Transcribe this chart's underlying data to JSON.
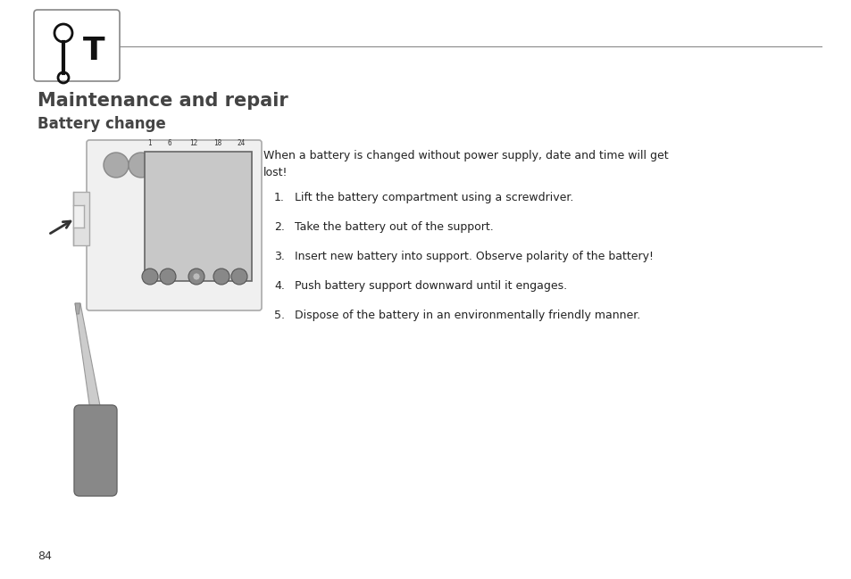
{
  "background_color": "#ffffff",
  "page_number": "84",
  "title1": "Maintenance and repair",
  "title2": "Battery change",
  "intro_text": "When a battery is changed without power supply, date and time will get\nlost!",
  "steps": [
    "Lift the battery compartment using a screwdriver.",
    "Take the battery out of the support.",
    "Insert new battery into support. Observe polarity of the battery!",
    "Push battery support downward until it engages.",
    "Dispose of the battery in an environmentally friendly manner."
  ],
  "text_color": "#000000",
  "title_color": "#444444",
  "gray_text": "#555555"
}
